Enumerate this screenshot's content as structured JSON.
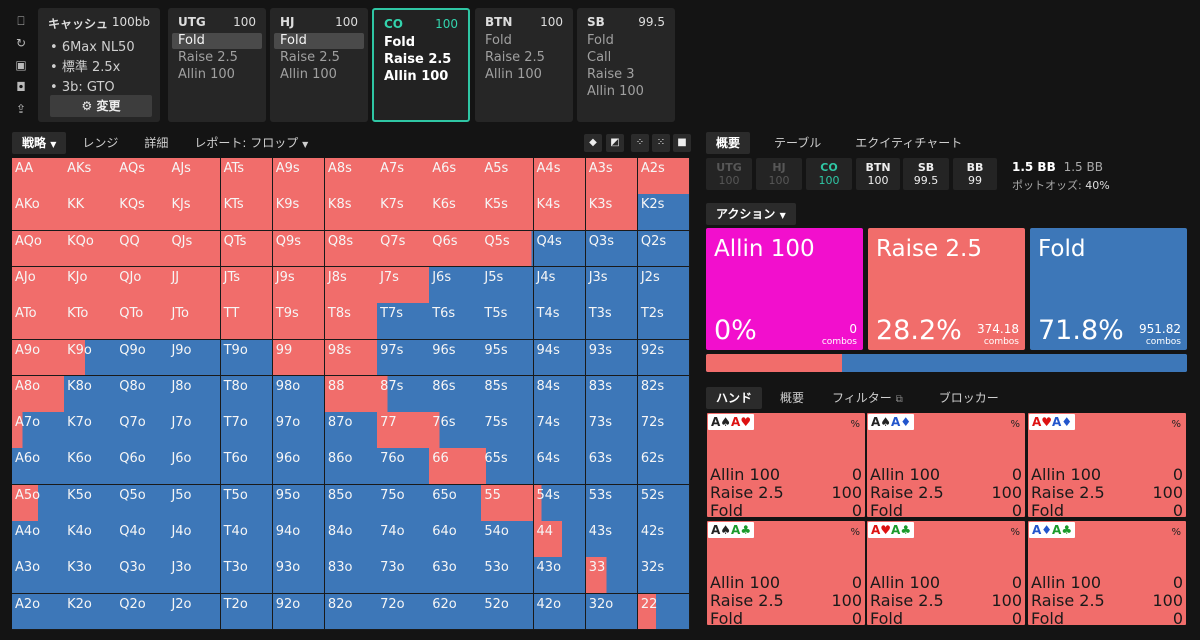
{
  "colors": {
    "raise": "#f16d6b",
    "fold": "#3d77b8",
    "allin": "#f20fcd",
    "accent": "#2fc6a4"
  },
  "left_icons": [
    "bookmark-icon",
    "refresh-icon",
    "save-icon",
    "gamepad-icon",
    "export-icon"
  ],
  "config": {
    "title": "キャッシュ",
    "stack": "100bb",
    "lines": [
      "6Max NL50",
      "標準 2.5x",
      "3b: GTO"
    ],
    "button": "変更"
  },
  "positions": [
    {
      "name": "UTG",
      "stack": "100",
      "actions": [
        {
          "label": "Fold",
          "sel": true
        },
        {
          "label": "Raise 2.5"
        },
        {
          "label": "Allin 100"
        }
      ]
    },
    {
      "name": "HJ",
      "stack": "100",
      "actions": [
        {
          "label": "Fold",
          "sel": true
        },
        {
          "label": "Raise 2.5"
        },
        {
          "label": "Allin 100"
        }
      ]
    },
    {
      "name": "CO",
      "stack": "100",
      "active": true,
      "actions": [
        {
          "label": "Fold"
        },
        {
          "label": "Raise 2.5"
        },
        {
          "label": "Allin 100"
        }
      ]
    },
    {
      "name": "BTN",
      "stack": "100",
      "actions": [
        {
          "label": "Fold"
        },
        {
          "label": "Raise 2.5"
        },
        {
          "label": "Allin 100"
        }
      ]
    },
    {
      "name": "SB",
      "stack": "99.5",
      "actions": [
        {
          "label": "Fold"
        },
        {
          "label": "Call"
        },
        {
          "label": "Raise 3"
        },
        {
          "label": "Allin 100"
        }
      ]
    }
  ],
  "left_tabs": {
    "strategy": "戦略",
    "range": "レンジ",
    "detail": "詳細",
    "report": "レポート: フロップ"
  },
  "right_tabs": {
    "overview": "概要",
    "table": "テーブル",
    "equity": "エクイティチャート"
  },
  "seats": [
    {
      "name": "UTG",
      "stack": "100"
    },
    {
      "name": "HJ",
      "stack": "100"
    },
    {
      "name": "CO",
      "stack": "100"
    },
    {
      "name": "BTN",
      "stack": "100"
    },
    {
      "name": "SB",
      "stack": "99.5"
    },
    {
      "name": "BB",
      "stack": "99"
    }
  ],
  "pot": {
    "main": "1.5 BB",
    "sub": "1.5 BB",
    "odds_label": "ポットオッズ:",
    "odds_value": "40%"
  },
  "action_dropdown": "アクション",
  "actions": [
    {
      "name": "Allin 100",
      "pct": "0%",
      "combos": "0",
      "combos_label": "combos",
      "frac": 0
    },
    {
      "name": "Raise 2.5",
      "pct": "28.2%",
      "combos": "374.18",
      "combos_label": "combos",
      "frac": 0.282
    },
    {
      "name": "Fold",
      "pct": "71.8%",
      "combos": "951.82",
      "combos_label": "combos",
      "frac": 0.718
    }
  ],
  "hand_tabs": {
    "hand": "ハンド",
    "overview": "概要",
    "filter": "フィルター",
    "blocker": "ブロッカー"
  },
  "hands": [
    {
      "cards": [
        "A♠",
        "A♥"
      ],
      "pct": "%",
      "rows": [
        {
          "l": "Allin 100",
          "v": "0"
        },
        {
          "l": "Raise 2.5",
          "v": "100"
        },
        {
          "l": "Fold",
          "v": "0"
        }
      ]
    },
    {
      "cards": [
        "A♠",
        "A♦"
      ],
      "pct": "%",
      "rows": [
        {
          "l": "Allin 100",
          "v": "0"
        },
        {
          "l": "Raise 2.5",
          "v": "100"
        },
        {
          "l": "Fold",
          "v": "0"
        }
      ]
    },
    {
      "cards": [
        "A♥",
        "A♦"
      ],
      "pct": "%",
      "rows": [
        {
          "l": "Allin 100",
          "v": "0"
        },
        {
          "l": "Raise 2.5",
          "v": "100"
        },
        {
          "l": "Fold",
          "v": "0"
        }
      ]
    },
    {
      "cards": [
        "A♠",
        "A♣"
      ],
      "pct": "%",
      "rows": [
        {
          "l": "Allin 100",
          "v": "0"
        },
        {
          "l": "Raise 2.5",
          "v": "100"
        },
        {
          "l": "Fold",
          "v": "0"
        }
      ]
    },
    {
      "cards": [
        "A♥",
        "A♣"
      ],
      "pct": "%",
      "rows": [
        {
          "l": "Allin 100",
          "v": "0"
        },
        {
          "l": "Raise 2.5",
          "v": "100"
        },
        {
          "l": "Fold",
          "v": "0"
        }
      ]
    },
    {
      "cards": [
        "A♦",
        "A♣"
      ],
      "pct": "%",
      "rows": [
        {
          "l": "Allin 100",
          "v": "0"
        },
        {
          "l": "Raise 2.5",
          "v": "100"
        },
        {
          "l": "Fold",
          "v": "0"
        }
      ]
    }
  ],
  "range": {
    "ranks": [
      "A",
      "K",
      "Q",
      "J",
      "T",
      "9",
      "8",
      "7",
      "6",
      "5",
      "4",
      "3",
      "2"
    ],
    "raise_freq": [
      [
        1,
        1,
        1,
        1,
        1,
        1,
        1,
        1,
        1,
        1,
        1,
        1,
        1
      ],
      [
        1,
        1,
        1,
        1,
        1,
        1,
        1,
        1,
        1,
        1,
        1,
        1,
        0
      ],
      [
        1,
        1,
        1,
        1,
        1,
        1,
        1,
        1,
        1,
        0.97,
        0,
        0,
        0
      ],
      [
        1,
        1,
        1,
        1,
        1,
        1,
        1,
        1,
        0,
        0,
        0,
        0,
        0
      ],
      [
        1,
        1,
        1,
        1,
        1,
        1,
        1,
        0,
        0,
        0,
        0,
        0,
        0
      ],
      [
        1,
        0.4,
        0,
        0,
        0,
        1,
        1,
        0,
        0,
        0,
        0,
        0,
        0
      ],
      [
        1,
        0,
        0,
        0,
        0,
        0,
        1,
        0.2,
        0,
        0,
        0,
        0,
        0
      ],
      [
        0.2,
        0,
        0,
        0,
        0,
        0,
        0,
        1,
        0.2,
        0,
        0,
        0,
        0
      ],
      [
        0,
        0,
        0,
        0,
        0,
        0,
        0,
        0,
        1,
        0.1,
        0,
        0,
        0
      ],
      [
        0.5,
        0,
        0,
        0,
        0,
        0,
        0,
        0,
        0,
        1,
        0.15,
        0,
        0
      ],
      [
        0,
        0,
        0,
        0,
        0,
        0,
        0,
        0,
        0,
        0,
        0.55,
        0,
        0
      ],
      [
        0,
        0,
        0,
        0,
        0,
        0,
        0,
        0,
        0,
        0,
        0,
        0.4,
        0
      ],
      [
        0,
        0,
        0,
        0,
        0,
        0,
        0,
        0,
        0,
        0,
        0,
        0,
        0.35
      ]
    ]
  }
}
